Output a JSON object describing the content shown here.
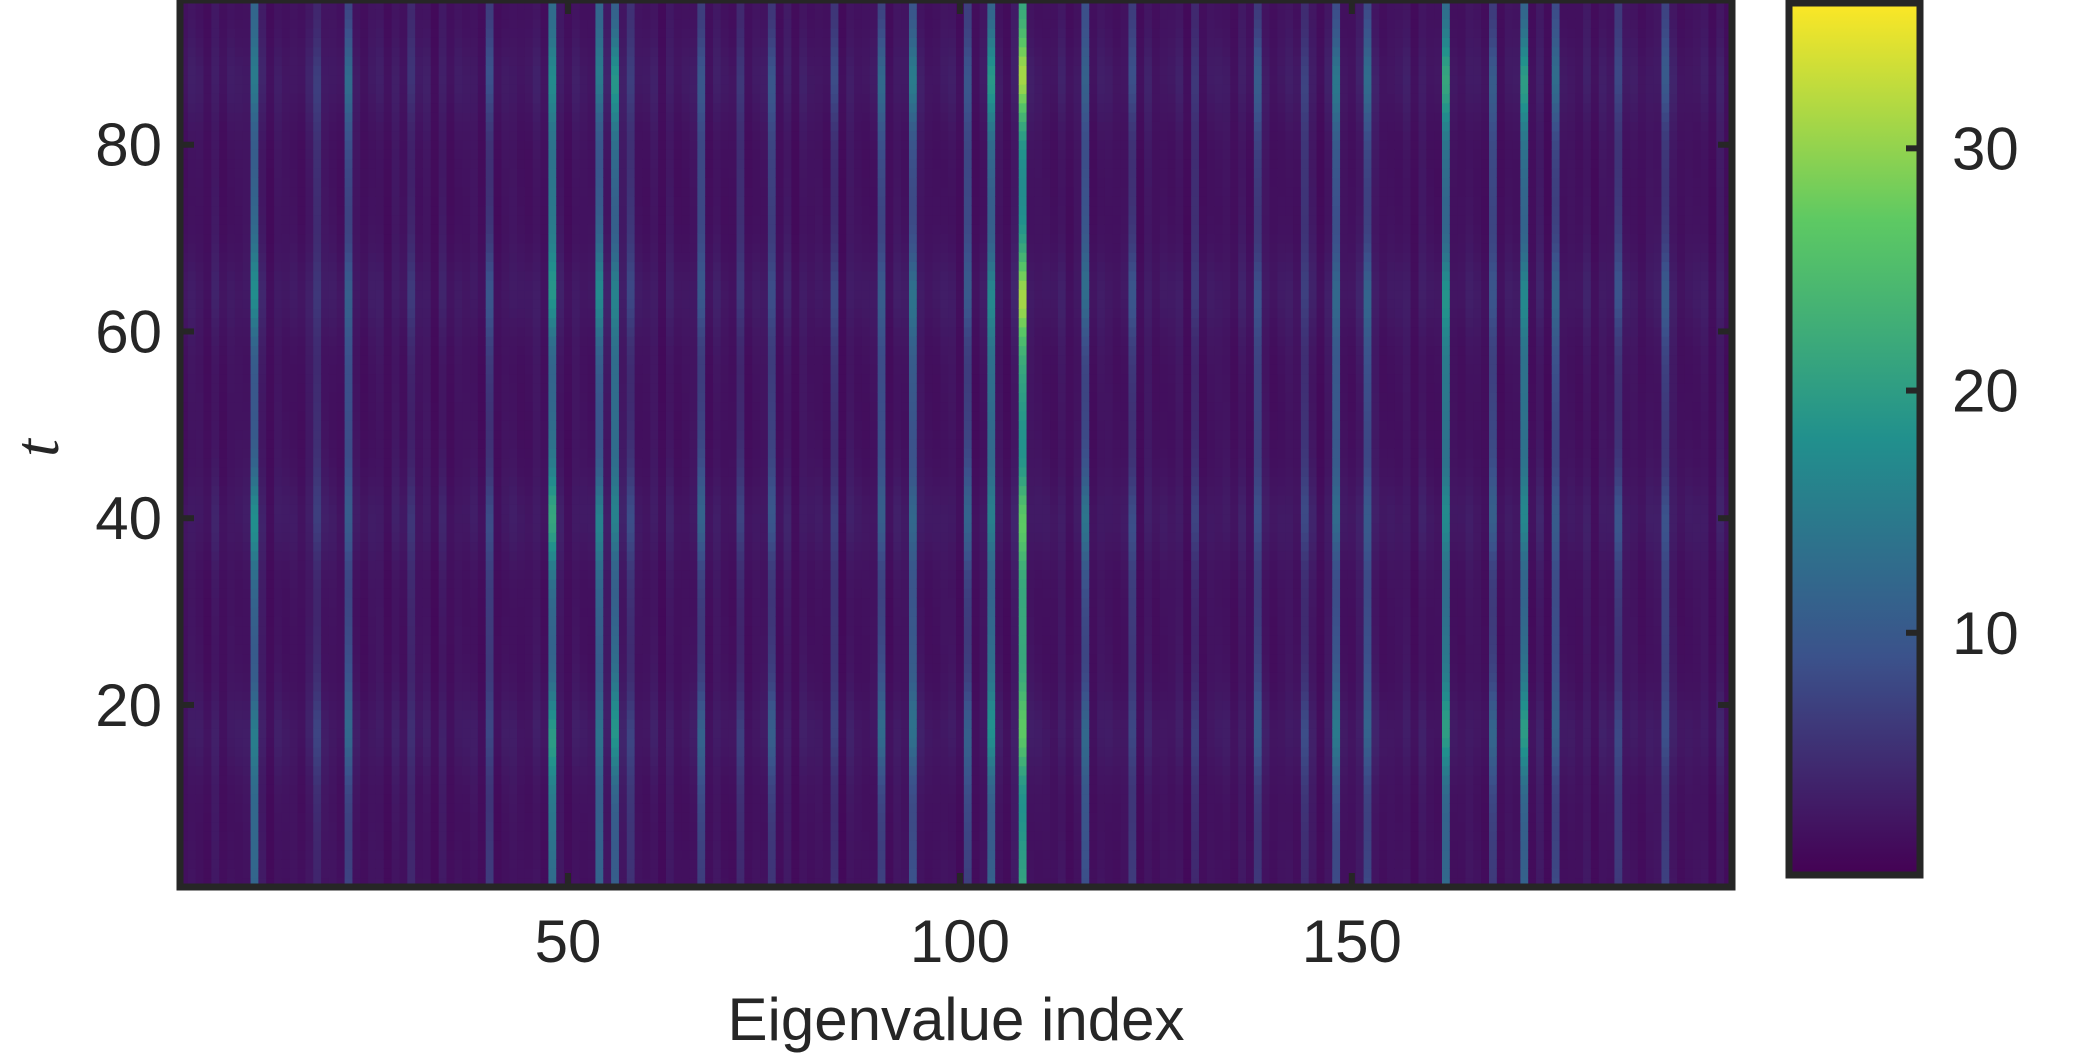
{
  "chart_data": {
    "type": "heatmap",
    "xlabel": "Eigenvalue index",
    "ylabel": "t",
    "x_range": [
      1,
      198
    ],
    "y_range": [
      1,
      95
    ],
    "x_ticks": [
      50,
      100,
      150
    ],
    "y_ticks": [
      20,
      40,
      60,
      80
    ],
    "colorbar": {
      "range": [
        0,
        36
      ],
      "ticks": [
        10,
        20,
        30
      ],
      "colormap": "viridis"
    },
    "columns": {
      "index": [
        10,
        18,
        22,
        30,
        40,
        48,
        54,
        56,
        58,
        67,
        72,
        76,
        84,
        90,
        94,
        101,
        104,
        108,
        116,
        122,
        130,
        138,
        144,
        148,
        152,
        162,
        168,
        172,
        176,
        184,
        190
      ],
      "base_value": [
        17,
        7,
        12,
        6,
        9,
        20,
        16,
        18,
        8,
        11,
        7,
        10,
        8,
        12,
        14,
        11,
        18,
        30,
        13,
        9,
        7,
        10,
        8,
        14,
        12,
        20,
        11,
        19,
        12,
        9,
        10
      ]
    },
    "temporal_peaks_t": [
      17,
      40,
      64,
      87
    ]
  },
  "colors": {
    "axis": "#262626",
    "colormap_stops": [
      "#440154",
      "#3b528b",
      "#21908d",
      "#5dc963",
      "#fde725"
    ]
  }
}
